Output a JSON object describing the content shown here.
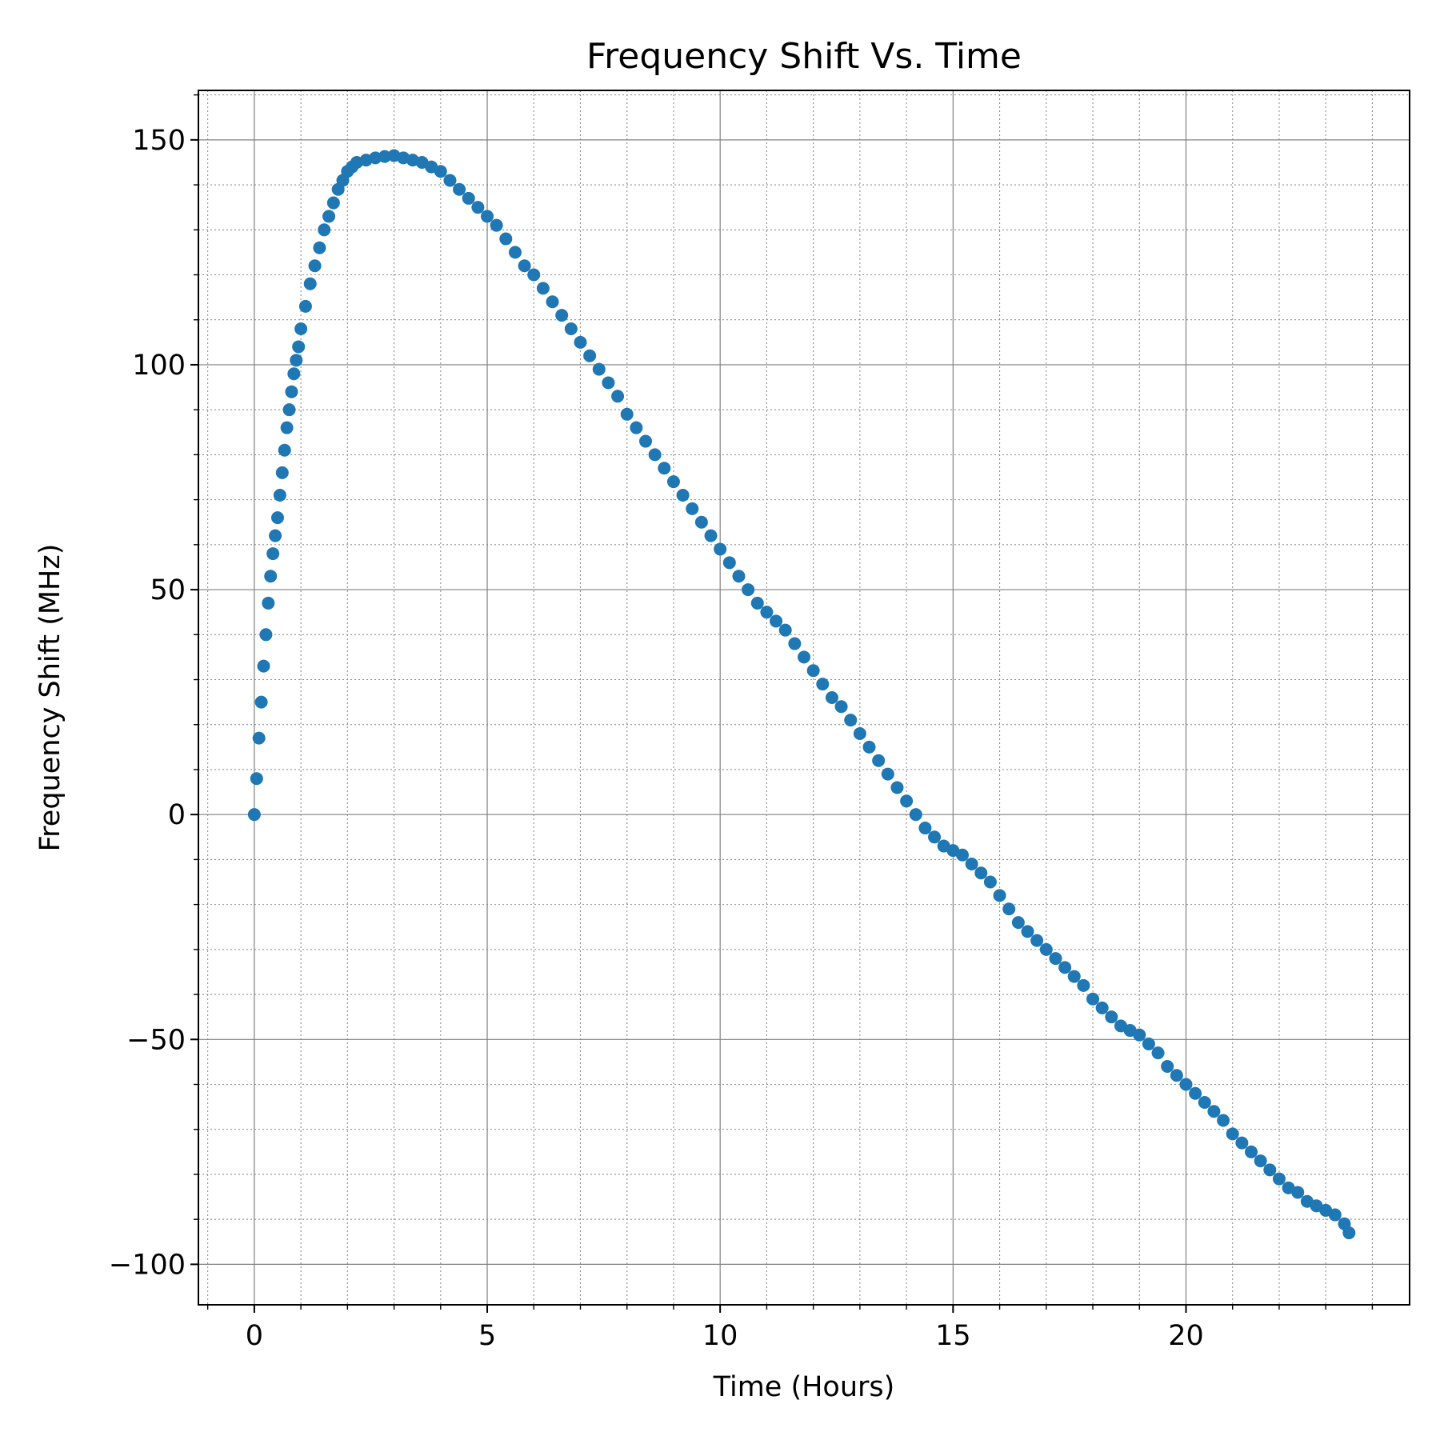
{
  "chart_data": {
    "type": "scatter",
    "title": "Frequency Shift Vs. Time",
    "xlabel": "Time (Hours)",
    "ylabel": "Frequency Shift (MHz)",
    "xlim": [
      -1.2,
      24.8
    ],
    "ylim": [
      -109,
      161
    ],
    "xticks": [
      0,
      5,
      10,
      15,
      20
    ],
    "xtick_labels": [
      "0",
      "5",
      "10",
      "15",
      "20"
    ],
    "yticks": [
      -100,
      -50,
      0,
      50,
      100,
      150
    ],
    "ytick_labels": [
      "−100",
      "−50",
      "0",
      "50",
      "100",
      "150"
    ],
    "x_minor_step": 1,
    "y_minor_step": 10,
    "grid": {
      "major": true,
      "minor": true
    },
    "marker_color": "#1f77b4",
    "series": [
      {
        "x": [
          0,
          0.05,
          0.1,
          0.15,
          0.2,
          0.25,
          0.3,
          0.35,
          0.4,
          0.45,
          0.5,
          0.55,
          0.6,
          0.65,
          0.7,
          0.75,
          0.8,
          0.85,
          0.9,
          0.95,
          1.0,
          1.1,
          1.2,
          1.3,
          1.4,
          1.5,
          1.6,
          1.7,
          1.8,
          1.9,
          2.0,
          2.1,
          2.2,
          2.4,
          2.6,
          2.8,
          3.0,
          3.2,
          3.4,
          3.6,
          3.8,
          4.0,
          4.2,
          4.4,
          4.6,
          4.8,
          5.0,
          5.2,
          5.4,
          5.6,
          5.8,
          6.0,
          6.2,
          6.4,
          6.6,
          6.8,
          7.0,
          7.2,
          7.4,
          7.6,
          7.8,
          8.0,
          8.2,
          8.4,
          8.6,
          8.8,
          9.0,
          9.2,
          9.4,
          9.6,
          9.8,
          10.0,
          10.2,
          10.4,
          10.6,
          10.8,
          11.0,
          11.2,
          11.4,
          11.6,
          11.8,
          12.0,
          12.2,
          12.4,
          12.6,
          12.8,
          13.0,
          13.2,
          13.4,
          13.6,
          13.8,
          14.0,
          14.2,
          14.4,
          14.6,
          14.8,
          15.0,
          15.2,
          15.4,
          15.6,
          15.8,
          16.0,
          16.2,
          16.4,
          16.6,
          16.8,
          17.0,
          17.2,
          17.4,
          17.6,
          17.8,
          18.0,
          18.2,
          18.4,
          18.6,
          18.8,
          19.0,
          19.2,
          19.4,
          19.6,
          19.8,
          20.0,
          20.2,
          20.4,
          20.6,
          20.8,
          21.0,
          21.2,
          21.4,
          21.6,
          21.8,
          22.0,
          22.2,
          22.4,
          22.6,
          22.8,
          23.0,
          23.2,
          23.4,
          23.5
        ],
        "y": [
          0,
          8,
          17,
          25,
          33,
          40,
          47,
          53,
          58,
          62,
          66,
          71,
          76,
          81,
          86,
          90,
          94,
          98,
          101,
          104,
          108,
          113,
          118,
          122,
          126,
          130,
          133,
          136,
          139,
          141,
          143,
          144,
          145,
          145.5,
          146,
          146.3,
          146.5,
          146,
          145.5,
          145,
          144,
          143,
          141,
          139,
          137,
          135,
          133,
          131,
          128,
          125,
          122,
          120,
          117,
          114,
          111,
          108,
          105,
          102,
          99,
          96,
          93,
          89,
          86,
          83,
          80,
          77,
          74,
          71,
          68,
          65,
          62,
          59,
          56,
          53,
          50,
          47,
          45,
          43,
          41,
          38,
          35,
          32,
          29,
          26,
          24,
          21,
          18,
          15,
          12,
          9,
          6,
          3,
          0,
          -3,
          -5,
          -7,
          -8,
          -9,
          -11,
          -13,
          -15,
          -18,
          -21,
          -24,
          -26,
          -28,
          -30,
          -32,
          -34,
          -36,
          -38,
          -41,
          -43,
          -45,
          -47,
          -48,
          -49,
          -51,
          -53,
          -56,
          -58,
          -60,
          -62,
          -64,
          -66,
          -68,
          -71,
          -73,
          -75,
          -77,
          -79,
          -81,
          -83,
          -84,
          -86,
          -87,
          -88,
          -89,
          -91,
          -93
        ]
      }
    ]
  }
}
